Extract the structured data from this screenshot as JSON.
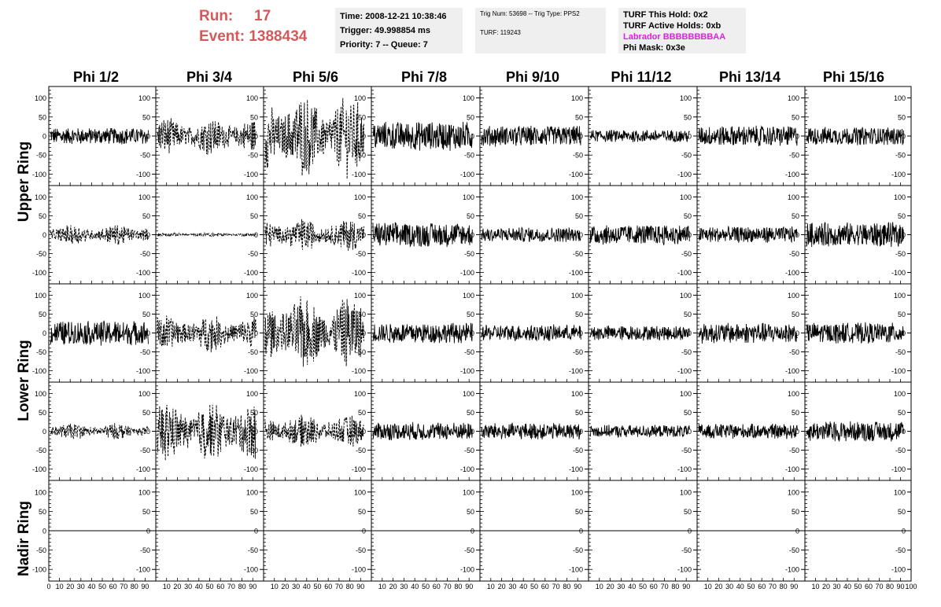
{
  "header": {
    "run_label": "Run:",
    "run_value": "17",
    "event_label": "Event:",
    "event_value": "1388434"
  },
  "info1": {
    "time": "Time: 2008-12-21 10:38:46",
    "trigger": "Trigger: 49.998854 ms",
    "priority": "Priority: 7 -- Queue: 7"
  },
  "info2": {
    "trig": "Trig Num: 53698 -- Trig Type: PPS2",
    "turf": "TURF: 119243"
  },
  "info3": {
    "hold": "TURF This Hold: 0x2",
    "active": "TURF Active Holds: 0xb",
    "labrador": "Labrador BBBBBBBBAA",
    "phimask": "Phi Mask: 0x3e"
  },
  "columns": [
    "Phi 1/2",
    "Phi 3/4",
    "Phi 5/6",
    "Phi 7/8",
    "Phi 9/10",
    "Phi 11/12",
    "Phi 13/14",
    "Phi 15/16"
  ],
  "rows": [
    "Upper Ring",
    "Upper Ring",
    "Lower Ring",
    "Lower Ring",
    "Nadir Ring"
  ],
  "row_labels": {
    "upper": "Upper Ring",
    "lower": "Lower Ring",
    "nadir": "Nadir Ring"
  },
  "chart_data": {
    "type": "line",
    "ylim": [
      -130,
      130
    ],
    "xlim": [
      0,
      100
    ],
    "y_ticks": [
      100,
      50,
      0,
      -50,
      -100
    ],
    "x_ticks": [
      0,
      10,
      20,
      30,
      40,
      50,
      60,
      70,
      80,
      90,
      100
    ],
    "amplitudes": [
      [
        20,
        45,
        100,
        35,
        25,
        15,
        25,
        22
      ],
      [
        25,
        5,
        40,
        30,
        18,
        25,
        20,
        30
      ],
      [
        30,
        45,
        90,
        25,
        20,
        18,
        25,
        25
      ],
      [
        20,
        75,
        40,
        22,
        20,
        15,
        18,
        25
      ],
      [
        0,
        0,
        0,
        0,
        0,
        0,
        0,
        0
      ]
    ],
    "dashed": [
      [
        false,
        true,
        true,
        false,
        false,
        false,
        false,
        false
      ],
      [
        true,
        true,
        true,
        false,
        false,
        false,
        false,
        false
      ],
      [
        false,
        true,
        true,
        false,
        false,
        false,
        false,
        false
      ],
      [
        true,
        true,
        true,
        false,
        false,
        false,
        false,
        false
      ],
      [
        false,
        false,
        false,
        false,
        false,
        false,
        false,
        false
      ]
    ]
  }
}
